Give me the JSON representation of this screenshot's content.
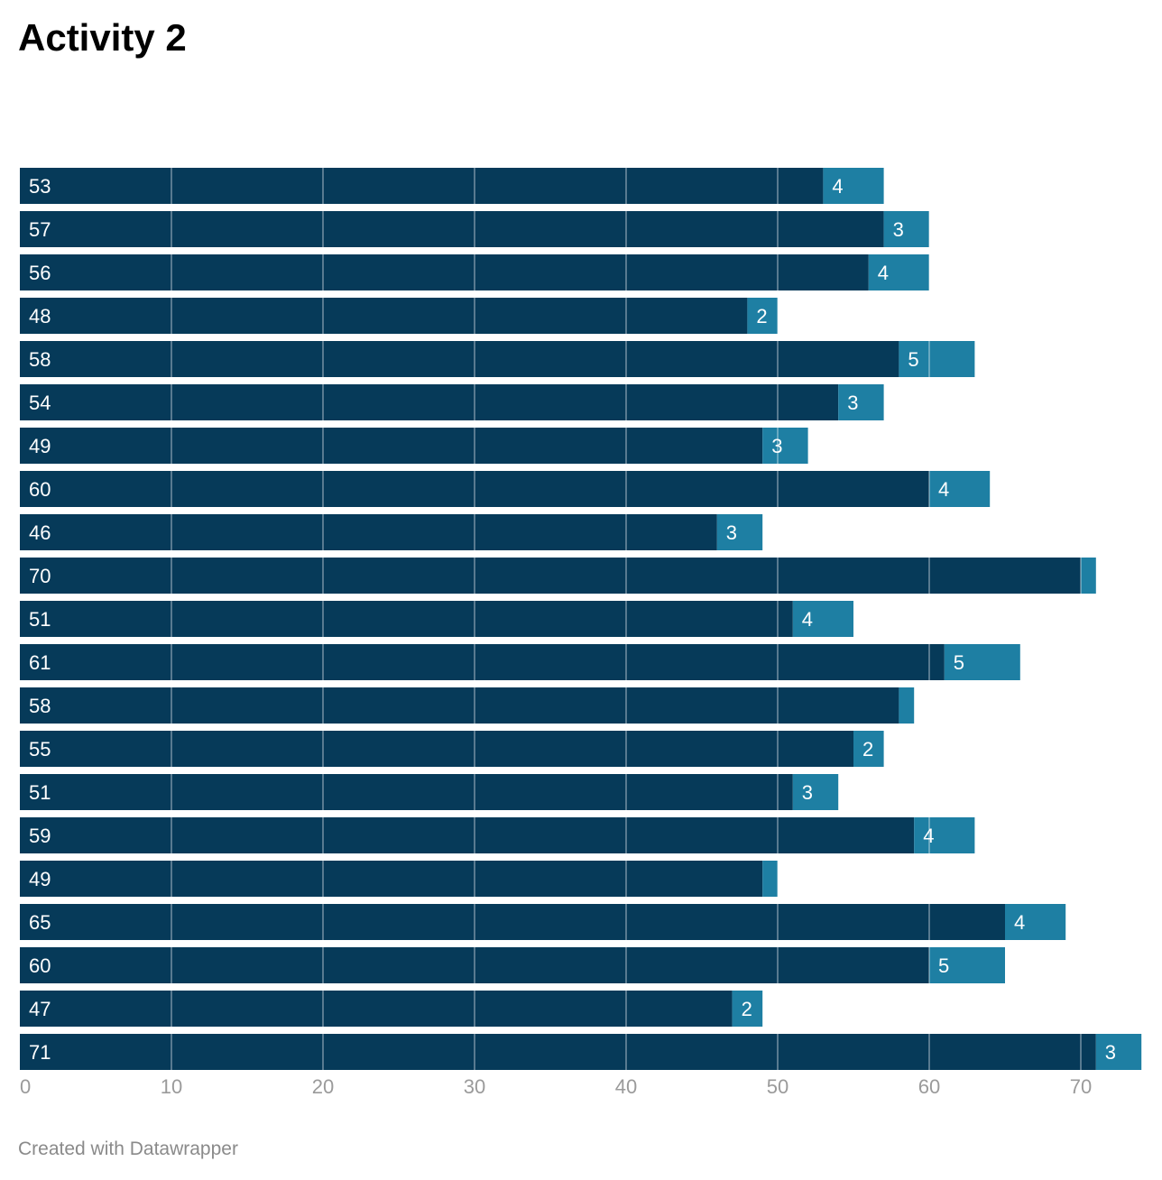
{
  "title": "Activity 2",
  "footer": "Created with Datawrapper",
  "colors": {
    "series1": "#063a59",
    "series2": "#1e7fa3",
    "grid": "#ffffff",
    "tick_text": "#9a9a9a",
    "label_text": "#ffffff"
  },
  "chart_data": {
    "type": "bar",
    "orientation": "horizontal",
    "stacked": true,
    "x_ticks": [
      "0",
      "10",
      "20",
      "30",
      "40",
      "50",
      "60",
      "70"
    ],
    "xlim": [
      0,
      74
    ],
    "grid": true,
    "series": [
      {
        "values": [
          53,
          57,
          56,
          48,
          58,
          54,
          49,
          60,
          46,
          70,
          51,
          61,
          58,
          55,
          51,
          59,
          49,
          65,
          60,
          47,
          71
        ],
        "labels": [
          "53",
          "57",
          "56",
          "48",
          "58",
          "54",
          "49",
          "60",
          "46",
          "70",
          "51",
          "61",
          "58",
          "55",
          "51",
          "59",
          "49",
          "65",
          "60",
          "47",
          "71"
        ]
      },
      {
        "values": [
          4,
          3,
          4,
          2,
          5,
          3,
          3,
          4,
          3,
          1,
          4,
          5,
          1,
          2,
          3,
          4,
          1,
          4,
          5,
          2,
          3
        ],
        "labels": [
          "4",
          "3",
          "4",
          "2",
          "5",
          "3",
          "3",
          "4",
          "3",
          "",
          "4",
          "5",
          "",
          "2",
          "3",
          "4",
          "",
          "4",
          "5",
          "2",
          "3"
        ]
      }
    ]
  }
}
